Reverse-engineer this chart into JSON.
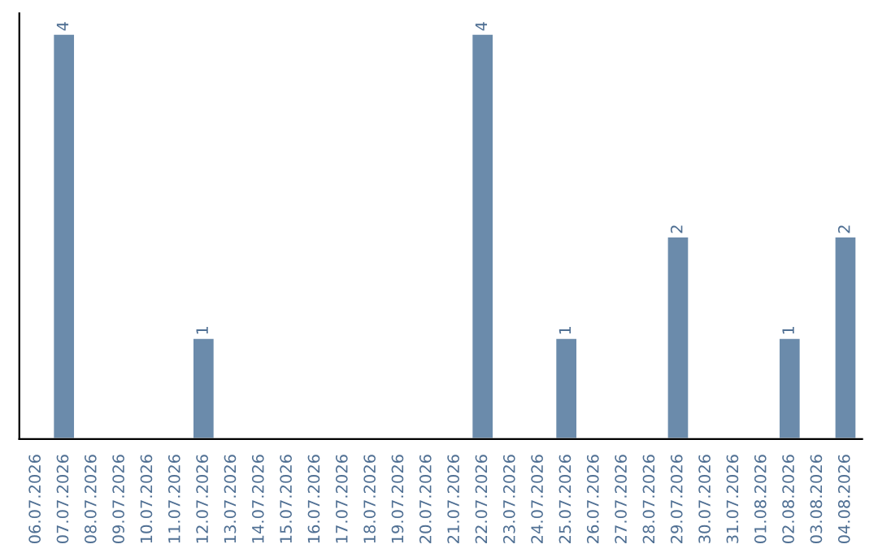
{
  "chart_data": {
    "type": "bar",
    "categories": [
      "06.07.2026",
      "07.07.2026",
      "08.07.2026",
      "09.07.2026",
      "10.07.2026",
      "11.07.2026",
      "12.07.2026",
      "13.07.2026",
      "14.07.2026",
      "15.07.2026",
      "16.07.2026",
      "17.07.2026",
      "18.07.2026",
      "19.07.2026",
      "20.07.2026",
      "21.07.2026",
      "22.07.2026",
      "23.07.2026",
      "24.07.2026",
      "25.07.2026",
      "26.07.2026",
      "27.07.2026",
      "28.07.2026",
      "29.07.2026",
      "30.07.2026",
      "31.07.2026",
      "01.08.2026",
      "02.08.2026",
      "03.08.2026",
      "04.08.2026"
    ],
    "values": [
      null,
      4,
      null,
      null,
      null,
      null,
      1,
      null,
      null,
      null,
      null,
      null,
      null,
      null,
      null,
      null,
      4,
      null,
      null,
      1,
      null,
      null,
      null,
      2,
      null,
      null,
      null,
      1,
      null,
      2
    ],
    "value_labels": [
      null,
      "4",
      null,
      null,
      null,
      null,
      "1",
      null,
      null,
      null,
      null,
      null,
      null,
      null,
      null,
      null,
      "4",
      null,
      null,
      "1",
      null,
      null,
      null,
      "2",
      null,
      null,
      null,
      "1",
      null,
      "2"
    ],
    "color": "#6b8bab",
    "ylim": [
      0,
      4.2
    ],
    "tick_labels": "x",
    "grid": false
  }
}
